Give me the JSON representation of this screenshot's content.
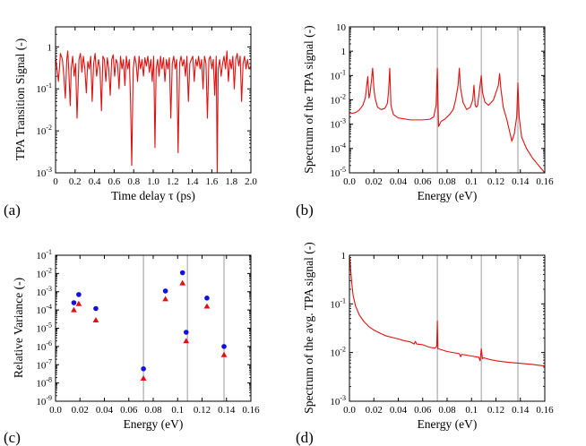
{
  "chart_data": [
    {
      "id": "a",
      "panel_label": "(a)",
      "type": "line",
      "xlabel": "Time delay τ (ps)",
      "ylabel": "TPA Transition Signal (-)",
      "xlim": [
        0,
        2.0
      ],
      "ylim": [
        0.001,
        3
      ],
      "yscale": "log",
      "xticks": [
        "0",
        "0.2",
        "0.4",
        "0.6",
        "0.8",
        "1.0",
        "1.2",
        "1.4",
        "1.6",
        "1.8",
        "2.0"
      ],
      "yticks": [
        "10^-3",
        "10^-2",
        "10^-1",
        "1"
      ],
      "series": [
        {
          "color": "#e01010",
          "x": [
            0.0,
            0.015,
            0.03,
            0.05,
            0.07,
            0.085,
            0.1,
            0.115,
            0.125,
            0.135,
            0.15,
            0.16,
            0.175,
            0.19,
            0.205,
            0.22,
            0.24,
            0.255,
            0.27,
            0.285,
            0.3,
            0.315,
            0.33,
            0.345,
            0.36,
            0.375,
            0.39,
            0.405,
            0.42,
            0.44,
            0.455,
            0.47,
            0.485,
            0.5,
            0.515,
            0.53,
            0.545,
            0.56,
            0.575,
            0.59,
            0.605,
            0.62,
            0.635,
            0.65,
            0.665,
            0.68,
            0.695,
            0.71,
            0.725,
            0.74,
            0.755,
            0.768,
            0.78,
            0.795,
            0.81,
            0.825,
            0.84,
            0.855,
            0.87,
            0.885,
            0.9,
            0.915,
            0.93,
            0.945,
            0.96,
            0.975,
            0.99,
            1.005,
            1.018,
            1.03,
            1.045,
            1.06,
            1.075,
            1.09,
            1.105,
            1.12,
            1.135,
            1.15,
            1.165,
            1.18,
            1.195,
            1.21,
            1.225,
            1.24,
            1.255,
            1.27,
            1.285,
            1.3,
            1.315,
            1.33,
            1.345,
            1.36,
            1.375,
            1.39,
            1.405,
            1.42,
            1.435,
            1.45,
            1.465,
            1.48,
            1.495,
            1.51,
            1.525,
            1.54,
            1.555,
            1.57,
            1.585,
            1.6,
            1.615,
            1.63,
            1.645,
            1.655,
            1.665,
            1.68,
            1.695,
            1.71,
            1.725,
            1.74,
            1.755,
            1.77,
            1.785,
            1.8,
            1.815,
            1.83,
            1.845,
            1.86,
            1.875,
            1.89,
            1.905,
            1.92,
            1.935,
            1.95,
            1.965,
            1.98,
            2.0
          ],
          "y": [
            0.6,
            0.3,
            0.15,
            0.7,
            0.5,
            0.2,
            0.06,
            0.5,
            0.8,
            0.3,
            0.04,
            0.3,
            0.6,
            0.2,
            0.4,
            0.02,
            0.5,
            0.7,
            0.25,
            0.6,
            0.3,
            0.08,
            0.45,
            0.3,
            0.6,
            0.05,
            0.4,
            0.7,
            0.2,
            0.5,
            0.3,
            0.03,
            0.6,
            0.5,
            0.15,
            0.55,
            0.3,
            0.07,
            0.5,
            0.65,
            0.2,
            0.5,
            0.4,
            0.1,
            0.6,
            0.3,
            0.5,
            0.12,
            0.6,
            0.3,
            0.5,
            0.05,
            0.0015,
            0.3,
            0.6,
            0.4,
            0.15,
            0.6,
            0.3,
            0.5,
            0.2,
            0.55,
            0.35,
            0.6,
            0.25,
            0.5,
            0.15,
            0.6,
            0.004,
            0.3,
            0.5,
            0.2,
            0.6,
            0.3,
            0.55,
            0.15,
            0.5,
            0.3,
            0.55,
            0.02,
            0.4,
            0.6,
            0.3,
            0.5,
            0.003,
            0.4,
            0.6,
            0.35,
            0.5,
            0.2,
            0.6,
            0.05,
            0.4,
            0.5,
            0.6,
            0.15,
            0.5,
            0.35,
            0.6,
            0.3,
            0.5,
            0.1,
            0.6,
            0.4,
            0.02,
            0.5,
            0.6,
            0.3,
            0.5,
            0.07,
            0.6,
            0.001,
            0.3,
            0.5,
            0.2,
            0.4,
            0.6,
            0.3,
            0.8,
            0.15,
            0.5,
            0.3,
            0.6,
            0.1,
            0.5,
            0.7,
            0.35,
            0.6,
            0.05,
            0.4,
            0.6,
            0.3,
            0.5,
            0.3,
            0.35
          ]
        }
      ]
    },
    {
      "id": "b",
      "panel_label": "(b)",
      "type": "line",
      "xlabel": "Energy (eV)",
      "ylabel": "Spectrum of the TPA signal (-)",
      "xlim": [
        0,
        0.16
      ],
      "ylim": [
        1e-05,
        10
      ],
      "yscale": "log",
      "xticks": [
        "0.0",
        "0.02",
        "0.04",
        "0.06",
        "0.08",
        "0.1",
        "0.12",
        "0.14",
        "0.16"
      ],
      "yticks": [
        "10^-5",
        "10^-4",
        "10^-3",
        "10^-2",
        "10^-1",
        "1",
        "10"
      ],
      "vlines": [
        0.072,
        0.108,
        0.138
      ],
      "series": [
        {
          "color": "#e01010",
          "x": [
            0.0,
            0.002,
            0.005,
            0.008,
            0.011,
            0.013,
            0.015,
            0.016,
            0.017,
            0.018,
            0.019,
            0.02,
            0.021,
            0.023,
            0.026,
            0.029,
            0.031,
            0.032,
            0.033,
            0.034,
            0.036,
            0.04,
            0.05,
            0.06,
            0.066,
            0.069,
            0.071,
            0.072,
            0.073,
            0.075,
            0.078,
            0.082,
            0.085,
            0.087,
            0.089,
            0.09,
            0.091,
            0.093,
            0.096,
            0.099,
            0.101,
            0.102,
            0.103,
            0.104,
            0.105,
            0.106,
            0.107,
            0.108,
            0.109,
            0.111,
            0.114,
            0.118,
            0.12,
            0.122,
            0.123,
            0.124,
            0.126,
            0.129,
            0.133,
            0.135,
            0.137,
            0.138,
            0.139,
            0.141,
            0.145,
            0.15,
            0.155,
            0.16
          ],
          "y": [
            0.003,
            0.0028,
            0.003,
            0.0038,
            0.006,
            0.012,
            0.09,
            0.012,
            0.02,
            0.06,
            0.2,
            0.03,
            0.012,
            0.005,
            0.004,
            0.0045,
            0.007,
            0.02,
            0.2,
            0.006,
            0.0025,
            0.0018,
            0.0015,
            0.0015,
            0.0016,
            0.002,
            0.006,
            0.2,
            0.0008,
            0.0013,
            0.0016,
            0.0025,
            0.004,
            0.01,
            0.04,
            0.2,
            0.03,
            0.008,
            0.004,
            0.005,
            0.01,
            0.04,
            0.006,
            0.005,
            0.006,
            0.015,
            0.04,
            0.1,
            0.02,
            0.008,
            0.006,
            0.01,
            0.02,
            0.04,
            0.12,
            0.03,
            0.005,
            0.0015,
            0.0002,
            0.0004,
            0.002,
            0.05,
            0.002,
            0.0003,
            0.0001,
            4e-05,
            2e-05,
            1e-05
          ]
        }
      ]
    },
    {
      "id": "c",
      "panel_label": "(c)",
      "type": "scatter",
      "xlabel": "Energy (eV)",
      "ylabel": "Relative Variance (-)",
      "xlim": [
        0,
        0.16
      ],
      "ylim": [
        1e-09,
        0.1
      ],
      "yscale": "log",
      "xticks": [
        "0.0",
        "0.02",
        "0.04",
        "0.06",
        "0.08",
        "0.1",
        "0.12",
        "0.14",
        "0.16"
      ],
      "yticks": [
        "10^-9",
        "10^-8",
        "10^-7",
        "10^-6",
        "10^-5",
        "10^-4",
        "10^-3",
        "10^-2",
        "10^-1"
      ],
      "vlines": [
        0.072,
        0.108,
        0.138
      ],
      "series": [
        {
          "marker": "circle",
          "color": "#1010e0",
          "x": [
            0.015,
            0.019,
            0.033,
            0.072,
            0.09,
            0.104,
            0.107,
            0.124,
            0.138
          ],
          "y": [
            0.00025,
            0.0007,
            0.00012,
            6e-08,
            0.0011,
            0.011,
            6e-06,
            0.00045,
            1e-06
          ]
        },
        {
          "marker": "triangle",
          "color": "#e01010",
          "x": [
            0.015,
            0.019,
            0.033,
            0.072,
            0.09,
            0.104,
            0.107,
            0.124,
            0.138
          ],
          "y": [
            0.0001,
            0.00022,
            2.8e-05,
            1.8e-08,
            0.0004,
            0.003,
            2e-06,
            0.00016,
            3.5e-07
          ]
        }
      ]
    },
    {
      "id": "d",
      "panel_label": "(d)",
      "type": "line",
      "xlabel": "Energy (eV)",
      "ylabel": "Spectrum of the avg. TPA signal (-)",
      "xlim": [
        0,
        0.16
      ],
      "ylim": [
        0.001,
        1
      ],
      "yscale": "log",
      "xticks": [
        "0.0",
        "0.02",
        "0.04",
        "0.06",
        "0.08",
        "0.1",
        "0.12",
        "0.14",
        "0.16"
      ],
      "yticks": [
        "10^-3",
        "10^-2",
        "10^-1",
        "1"
      ],
      "vlines": [
        0.072,
        0.108,
        0.138
      ],
      "series": [
        {
          "color": "#e01010",
          "x": [
            0.0,
            0.0005,
            0.001,
            0.002,
            0.003,
            0.005,
            0.008,
            0.012,
            0.016,
            0.02,
            0.025,
            0.03,
            0.035,
            0.04,
            0.045,
            0.05,
            0.053,
            0.054,
            0.055,
            0.06,
            0.065,
            0.07,
            0.0715,
            0.072,
            0.0725,
            0.075,
            0.08,
            0.09,
            0.091,
            0.092,
            0.1,
            0.106,
            0.107,
            0.108,
            0.109,
            0.11,
            0.115,
            0.12,
            0.13,
            0.14,
            0.15,
            0.16
          ],
          "y": [
            1.0,
            0.8,
            0.5,
            0.25,
            0.15,
            0.09,
            0.06,
            0.043,
            0.034,
            0.029,
            0.025,
            0.022,
            0.0205,
            0.019,
            0.0175,
            0.0165,
            0.015,
            0.017,
            0.015,
            0.0145,
            0.013,
            0.0123,
            0.0135,
            0.045,
            0.012,
            0.0115,
            0.0105,
            0.0095,
            0.0082,
            0.0092,
            0.0085,
            0.008,
            0.0068,
            0.012,
            0.0075,
            0.0078,
            0.0072,
            0.0068,
            0.0063,
            0.006,
            0.0057,
            0.0053
          ]
        }
      ]
    }
  ]
}
